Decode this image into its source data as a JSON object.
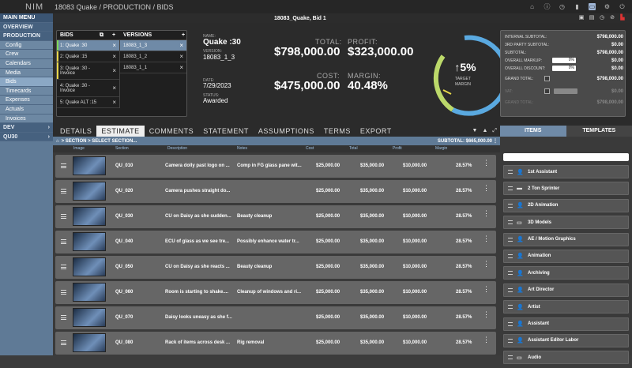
{
  "app": {
    "logo": "NIM",
    "breadcrumb": "18083 Quake / PRODUCTION / BIDS"
  },
  "sidebar": {
    "main_menu": "MAIN MENU",
    "overview": "OVERVIEW",
    "production": "PRODUCTION",
    "items": [
      "Config",
      "Crew",
      "Calendars",
      "Media",
      "Bids",
      "Timecards",
      "Expenses",
      "Actuals",
      "Invoices"
    ],
    "dev": "DEV",
    "qu30": "QU30"
  },
  "title": "18083_Quake, Bid 1",
  "bids": {
    "header": "BIDS",
    "versions_header": "VERSIONS",
    "list": [
      "1: Quake :30",
      "2: Quake :15",
      "3: Quake :30 - Invoice",
      "4: Quake :30 - Invoice",
      "5: Quake ALT :15"
    ],
    "versions": [
      "18083_1_3",
      "18083_1_2",
      "18083_1_1"
    ]
  },
  "details": {
    "name_label": "NAME:",
    "name": "Quake :30",
    "version_label": "VERSION:",
    "version": "18083_1_3",
    "date_label": "DATE:",
    "date": "7/29/2023",
    "status_label": "STATUS:",
    "status": "Awarded"
  },
  "figures": {
    "total_label": "TOTAL:",
    "total": "$798,000.00",
    "profit_label": "PROFIT:",
    "profit": "$323,000.00",
    "cost_label": "COST:",
    "cost": "$475,000.00",
    "margin_label": "MARGIN:",
    "margin": "40.48%"
  },
  "gauge": {
    "value": "5%",
    "label1": "TARGET",
    "label2": "MARGIN",
    "arrow": "↑"
  },
  "totals": {
    "internal_subtotal_label": "INTERNAL SUBTOTAL:",
    "internal_subtotal": "$798,000.00",
    "third_party_label": "3RD PARTY SUBTOTAL:",
    "third_party": "$0.00",
    "subtotal_label": "SUBTOTAL:",
    "subtotal": "$798,000.00",
    "markup_label": "OVERALL MARKUP:",
    "markup_input": "0%",
    "markup": "$0.00",
    "discount_label": "OVERALL DISCOUNT:",
    "discount_input": "0%",
    "discount": "$0.00",
    "grand_label": "GRAND TOTAL:",
    "grand": "$798,000.00",
    "vat_label": "VAT:",
    "vat": "$0.00",
    "grand2_label": "GRAND TOTAL:",
    "grand2": "$798,000.00"
  },
  "tabs": [
    "DETAILS",
    "ESTIMATE",
    "COMMENTS",
    "STATEMENT",
    "ASSUMPTIONS",
    "TERMS",
    "EXPORT"
  ],
  "right_tabs": {
    "items": "ITEMS",
    "templates": "TEMPLATES"
  },
  "crumbbar": {
    "path": "> SECTION > SELECT SECTION...",
    "subtotal": "SUBTOTAL: $665,000.00"
  },
  "columns": [
    "Image",
    "Section",
    "Description",
    "Notes",
    "Cost",
    "Total",
    "Profit",
    "Margin"
  ],
  "rows": [
    {
      "section": "QU_010",
      "description": "Camera dolly past logo on ...",
      "notes": "Comp in FG glass pane wit...",
      "cost": "$25,000.00",
      "total": "$35,000.00",
      "profit": "$10,000.00",
      "margin": "28.57%"
    },
    {
      "section": "QU_020",
      "description": "Camera pushes straight do...",
      "notes": "",
      "cost": "$25,000.00",
      "total": "$35,000.00",
      "profit": "$10,000.00",
      "margin": "28.57%"
    },
    {
      "section": "QU_030",
      "description": "CU on Daisy as she sudden...",
      "notes": "Beauty cleanup",
      "cost": "$25,000.00",
      "total": "$35,000.00",
      "profit": "$10,000.00",
      "margin": "28.57%"
    },
    {
      "section": "QU_040",
      "description": "ECU of glass as we see tre...",
      "notes": "Possibly enhance water tr...",
      "cost": "$25,000.00",
      "total": "$35,000.00",
      "profit": "$10,000.00",
      "margin": "28.57%"
    },
    {
      "section": "QU_050",
      "description": "CU on Daisy as she reacts ...",
      "notes": "Beauty cleanup",
      "cost": "$25,000.00",
      "total": "$35,000.00",
      "profit": "$10,000.00",
      "margin": "28.57%"
    },
    {
      "section": "QU_060",
      "description": "Room is starting to shake....",
      "notes": "Cleanup of windows and ri...",
      "cost": "$25,000.00",
      "total": "$35,000.00",
      "profit": "$10,000.00",
      "margin": "28.57%"
    },
    {
      "section": "QU_070",
      "description": "Daisy looks uneasy as she f...",
      "notes": "",
      "cost": "$25,000.00",
      "total": "$35,000.00",
      "profit": "$10,000.00",
      "margin": "28.57%"
    },
    {
      "section": "QU_080",
      "description": "Rack of items across desk ...",
      "notes": "Rig removal",
      "cost": "$25,000.00",
      "total": "$35,000.00",
      "profit": "$10,000.00",
      "margin": "28.57%"
    }
  ],
  "items": [
    "1st Assistant",
    "2 Ton Sprinter",
    "2D Animation",
    "3D Models",
    "AE / Motion Graphics",
    "Animation",
    "Archiving",
    "Art Director",
    "Artist",
    "Assistant",
    "Assistant Editor Labor",
    "Audio"
  ]
}
